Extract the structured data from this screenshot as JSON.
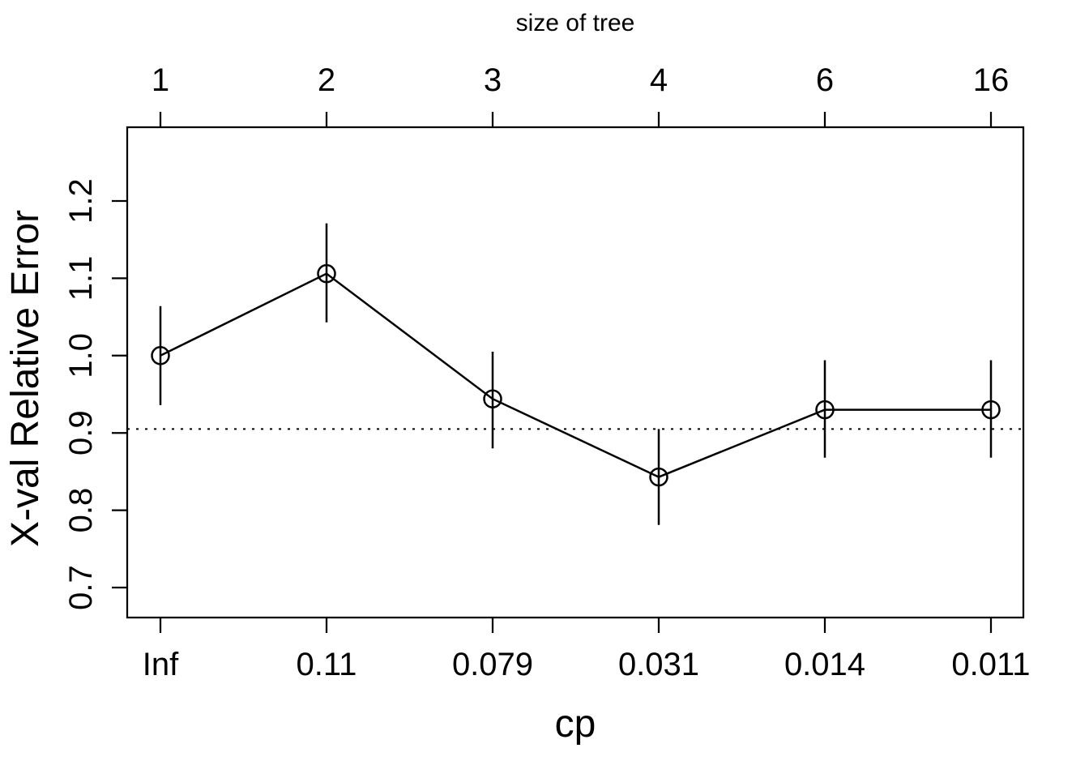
{
  "chart_data": {
    "type": "line",
    "title": "size of tree",
    "xlabel": "cp",
    "ylabel": "X-val Relative Error",
    "top_axis_label": "size of tree",
    "top_tick_labels": [
      "1",
      "2",
      "3",
      "4",
      "6",
      "16"
    ],
    "bottom_tick_labels": [
      "Inf",
      "0.11",
      "0.079",
      "0.031",
      "0.014",
      "0.011"
    ],
    "y_tick_labels": [
      "0.7",
      "0.8",
      "0.9",
      "1.0",
      "1.1",
      "1.2"
    ],
    "y_tick_values": [
      0.7,
      0.8,
      0.9,
      1.0,
      1.1,
      1.2
    ],
    "ylim": [
      0.661,
      1.293
    ],
    "grid": false,
    "legend": false,
    "series": [
      {
        "name": "xval-relative-error",
        "marker": "open-circle",
        "cp": [
          "Inf",
          "0.11",
          "0.079",
          "0.031",
          "0.014",
          "0.011"
        ],
        "tree_size": [
          1,
          2,
          3,
          4,
          6,
          16
        ],
        "values": [
          1.0,
          1.106,
          0.944,
          0.843,
          0.93,
          0.93
        ],
        "upper": [
          1.064,
          1.171,
          1.005,
          0.905,
          0.994,
          0.994
        ],
        "lower": [
          0.936,
          1.043,
          0.88,
          0.781,
          0.868,
          0.868
        ]
      }
    ],
    "reference_line": {
      "value": 0.905,
      "style": "dotted"
    },
    "colors": {
      "foreground": "#000000",
      "background": "#ffffff"
    }
  }
}
